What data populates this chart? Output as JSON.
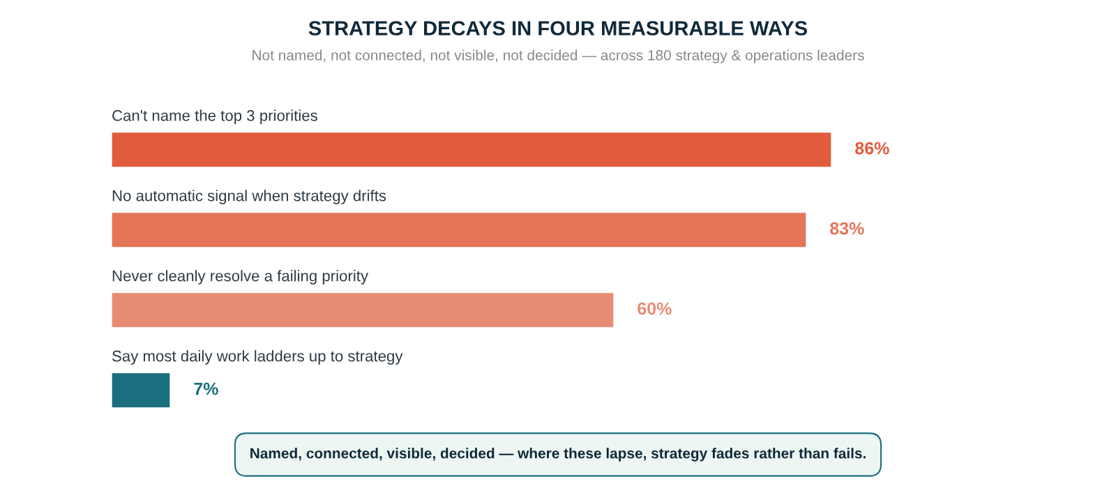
{
  "chart_data": {
    "type": "bar",
    "orientation": "horizontal",
    "title": "STRATEGY DECAYS IN FOUR MEASURABLE WAYS",
    "subtitle": "Not named, not connected, not visible, not decided — across 180 strategy & operations leaders",
    "categories": [
      "Can't name the top 3 priorities",
      "No automatic signal when strategy drifts",
      "Never cleanly resolve a failing priority",
      "Say most daily work ladders up to strategy"
    ],
    "values": [
      86,
      83,
      60,
      7
    ],
    "colors": [
      "#e05c3c",
      "#e57558",
      "#e88b74",
      "#1b6e7e"
    ],
    "value_labels": [
      "86%",
      "83%",
      "60%",
      "7%"
    ],
    "annotations": [
      "Named, connected, visible, decided — where these lapse, strategy fades rather than fails."
    ]
  }
}
